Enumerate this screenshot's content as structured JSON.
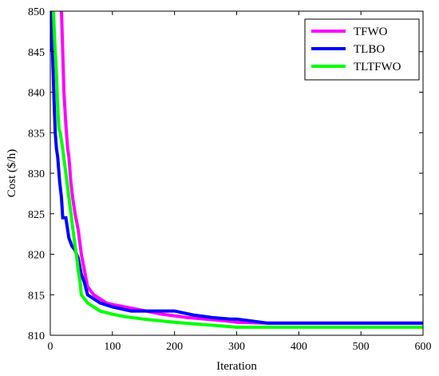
{
  "chart_data": {
    "type": "line",
    "xlabel": "Iteration",
    "ylabel": "Cost ($/h)",
    "xlim": [
      0,
      600
    ],
    "ylim": [
      810,
      850
    ],
    "xticks": [
      0,
      100,
      200,
      300,
      400,
      500,
      600
    ],
    "yticks": [
      810,
      815,
      820,
      825,
      830,
      835,
      840,
      845,
      850
    ],
    "grid": false,
    "legend_position": "top-right",
    "series": [
      {
        "name": "TFWO",
        "color": "#ff00ff",
        "x": [
          18,
          20,
          22,
          25,
          28,
          30,
          33,
          36,
          40,
          45,
          50,
          55,
          60,
          70,
          80,
          90,
          100,
          120,
          140,
          160,
          180,
          200,
          220,
          250,
          280,
          300,
          350,
          400,
          450,
          500,
          600
        ],
        "y": [
          850,
          845,
          840,
          836,
          833,
          832,
          829,
          827,
          825,
          823,
          820,
          818,
          816,
          815,
          814.5,
          814,
          813.8,
          813.5,
          813.2,
          812.9,
          812.6,
          812.4,
          812.2,
          812,
          811.8,
          811.6,
          811.5,
          811.5,
          811.5,
          811.5,
          811.5
        ]
      },
      {
        "name": "TLBO",
        "color": "#0000ff",
        "x": [
          0,
          2,
          4,
          6,
          8,
          10,
          12,
          15,
          18,
          20,
          25,
          30,
          35,
          40,
          45,
          50,
          55,
          60,
          70,
          80,
          100,
          130,
          150,
          200,
          230,
          260,
          290,
          300,
          320,
          350,
          400,
          450,
          500,
          600
        ],
        "y": [
          845,
          850,
          844,
          839,
          835,
          833,
          832,
          829,
          827,
          824.5,
          824.5,
          822,
          821,
          820.5,
          819.5,
          817.5,
          816.5,
          815,
          814.5,
          814,
          813.5,
          813,
          813,
          813,
          812.5,
          812.2,
          812,
          812,
          811.8,
          811.5,
          811.5,
          811.5,
          811.5,
          811.5
        ]
      },
      {
        "name": "TLTFWO",
        "color": "#00ff00",
        "x": [
          5,
          8,
          10,
          12,
          14,
          16,
          20,
          25,
          30,
          35,
          40,
          42,
          45,
          48,
          50,
          55,
          60,
          70,
          80,
          100,
          120,
          150,
          200,
          250,
          300,
          350,
          400,
          450,
          500,
          600
        ],
        "y": [
          850,
          845,
          842,
          838,
          835.5,
          835,
          833,
          830,
          827,
          824,
          821,
          820,
          818,
          816.5,
          815,
          814.5,
          814,
          813.5,
          813,
          812.6,
          812.3,
          812,
          811.6,
          811.3,
          811,
          811,
          811,
          811,
          811,
          811
        ]
      }
    ]
  }
}
